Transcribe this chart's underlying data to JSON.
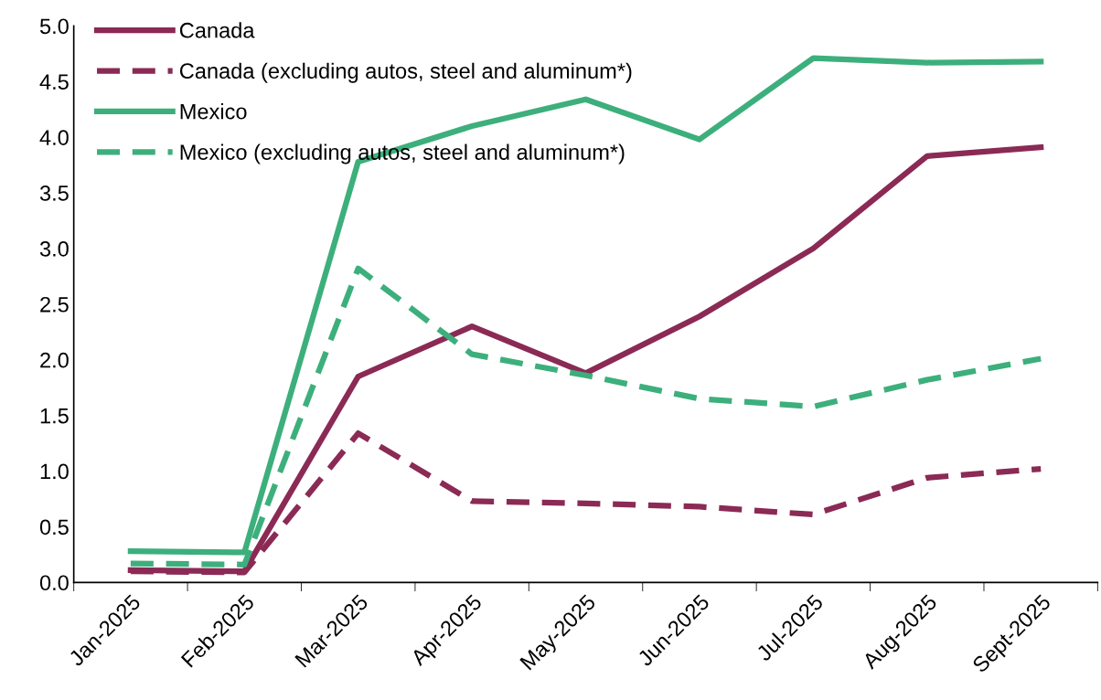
{
  "chart_data": {
    "type": "line",
    "categories": [
      "Jan-2025",
      "Feb-2025",
      "Mar-2025",
      "Apr-2025",
      "May-2025",
      "Jun-2025",
      "Jul-2025",
      "Aug-2025",
      "Sept-2025"
    ],
    "series": [
      {
        "name": "Canada",
        "color": "#8b2a55",
        "line_style": "solid",
        "values": [
          0.11,
          0.1,
          1.85,
          2.3,
          1.88,
          2.39,
          3.0,
          3.83,
          3.91
        ]
      },
      {
        "name": "Canada (excluding autos, steel and aluminum*)",
        "color": "#8b2a55",
        "line_style": "dashed",
        "values": [
          0.1,
          0.09,
          1.34,
          0.73,
          0.71,
          0.68,
          0.61,
          0.94,
          1.02
        ]
      },
      {
        "name": "Mexico",
        "color": "#3daf7c",
        "line_style": "solid",
        "values": [
          0.28,
          0.27,
          3.78,
          4.1,
          4.34,
          3.98,
          4.71,
          4.67,
          4.68
        ]
      },
      {
        "name": "Mexico (excluding autos, steel and aluminum*)",
        "color": "#3daf7c",
        "line_style": "dashed",
        "values": [
          0.17,
          0.16,
          2.82,
          2.05,
          1.86,
          1.65,
          1.58,
          1.82,
          2.01
        ]
      }
    ],
    "ylim": [
      0,
      5
    ],
    "yticks": [
      {
        "value": 0,
        "label": "0.0"
      },
      {
        "value": 0.5,
        "label": "0.5"
      },
      {
        "value": 1,
        "label": "1.0"
      },
      {
        "value": 1.5,
        "label": "1.5"
      },
      {
        "value": 2,
        "label": "2.0"
      },
      {
        "value": 2.5,
        "label": "2.5"
      },
      {
        "value": 3,
        "label": "3.0"
      },
      {
        "value": 3.5,
        "label": "3.5"
      },
      {
        "value": 4,
        "label": "4.0"
      },
      {
        "value": 4.5,
        "label": "4.5"
      },
      {
        "value": 5,
        "label": "5.0"
      }
    ],
    "grid": false,
    "legend": "top left",
    "marker": "none"
  }
}
